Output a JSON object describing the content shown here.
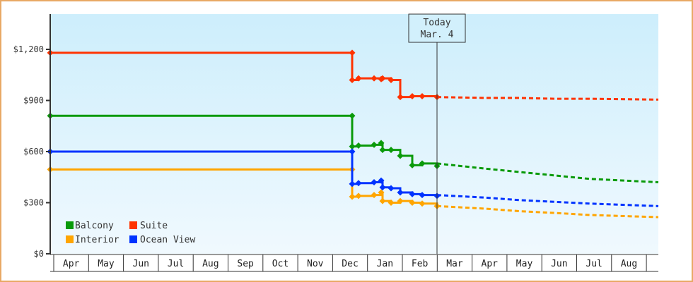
{
  "chart_data": {
    "type": "line",
    "title": "",
    "xlabel": "",
    "ylabel": "",
    "ylim": [
      0,
      1400
    ],
    "y_ticks": [
      {
        "value": 0,
        "label": "$0"
      },
      {
        "value": 300,
        "label": "$300"
      },
      {
        "value": 600,
        "label": "$600"
      },
      {
        "value": 900,
        "label": "$900"
      },
      {
        "value": 1200,
        "label": "$1,200"
      }
    ],
    "x_ticks": [
      "Apr",
      "May",
      "Jun",
      "Jul",
      "Aug",
      "Sep",
      "Oct",
      "Nov",
      "Dec",
      "Jan",
      "Feb",
      "Mar",
      "Apr",
      "May",
      "Jun",
      "Jul",
      "Aug"
    ],
    "grid": false,
    "legend_position": "lower-left inside",
    "today_marker": {
      "line1": "Today",
      "line2": "Mar. 4"
    },
    "series": [
      {
        "name": "Balcony",
        "color": "#0a9a0a",
        "history": [
          {
            "date": "Apr",
            "value": 810
          },
          {
            "date": "Dec",
            "value": 810
          },
          {
            "date": "Dec",
            "value": 630
          },
          {
            "date": "Dec",
            "value": 635
          },
          {
            "date": "Jan",
            "value": 640
          },
          {
            "date": "Jan",
            "value": 650
          },
          {
            "date": "Jan",
            "value": 610
          },
          {
            "date": "Jan",
            "value": 610
          },
          {
            "date": "Feb",
            "value": 575
          },
          {
            "date": "Feb",
            "value": 520
          },
          {
            "date": "Feb",
            "value": 530
          },
          {
            "date": "Mar",
            "value": 515
          }
        ],
        "forecast": [
          {
            "date": "Mar",
            "value": 530
          },
          {
            "date": "Apr",
            "value": 500
          },
          {
            "date": "May",
            "value": 480
          },
          {
            "date": "Jun",
            "value": 460
          },
          {
            "date": "Jul",
            "value": 440
          },
          {
            "date": "Aug",
            "value": 420
          }
        ]
      },
      {
        "name": "Suite",
        "color": "#ff3300",
        "history": [
          {
            "date": "Apr",
            "value": 1180
          },
          {
            "date": "Dec",
            "value": 1180
          },
          {
            "date": "Dec",
            "value": 1020
          },
          {
            "date": "Dec",
            "value": 1030
          },
          {
            "date": "Jan",
            "value": 1030
          },
          {
            "date": "Jan",
            "value": 1025
          },
          {
            "date": "Jan",
            "value": 1030
          },
          {
            "date": "Feb",
            "value": 1020
          },
          {
            "date": "Feb",
            "value": 920
          },
          {
            "date": "Feb",
            "value": 925
          },
          {
            "date": "Feb",
            "value": 925
          },
          {
            "date": "Mar",
            "value": 920
          }
        ],
        "forecast": [
          {
            "date": "Mar",
            "value": 920
          },
          {
            "date": "Apr",
            "value": 915
          },
          {
            "date": "May",
            "value": 915
          },
          {
            "date": "Jun",
            "value": 910
          },
          {
            "date": "Jul",
            "value": 910
          },
          {
            "date": "Aug",
            "value": 905
          }
        ]
      },
      {
        "name": "Interior",
        "color": "#ffa500",
        "history": [
          {
            "date": "Apr",
            "value": 495
          },
          {
            "date": "Dec",
            "value": 495
          },
          {
            "date": "Dec",
            "value": 335
          },
          {
            "date": "Dec",
            "value": 340
          },
          {
            "date": "Jan",
            "value": 345
          },
          {
            "date": "Jan",
            "value": 360
          },
          {
            "date": "Jan",
            "value": 310
          },
          {
            "date": "Jan",
            "value": 300
          },
          {
            "date": "Feb",
            "value": 310
          },
          {
            "date": "Feb",
            "value": 300
          },
          {
            "date": "Feb",
            "value": 295
          },
          {
            "date": "Mar",
            "value": 280
          }
        ],
        "forecast": [
          {
            "date": "Mar",
            "value": 280
          },
          {
            "date": "Apr",
            "value": 265
          },
          {
            "date": "May",
            "value": 250
          },
          {
            "date": "Jun",
            "value": 240
          },
          {
            "date": "Jul",
            "value": 228
          },
          {
            "date": "Aug",
            "value": 215
          }
        ]
      },
      {
        "name": "Ocean View",
        "color": "#0033ff",
        "history": [
          {
            "date": "Apr",
            "value": 600
          },
          {
            "date": "Dec",
            "value": 600
          },
          {
            "date": "Dec",
            "value": 410
          },
          {
            "date": "Dec",
            "value": 415
          },
          {
            "date": "Jan",
            "value": 420
          },
          {
            "date": "Jan",
            "value": 430
          },
          {
            "date": "Jan",
            "value": 390
          },
          {
            "date": "Jan",
            "value": 385
          },
          {
            "date": "Feb",
            "value": 360
          },
          {
            "date": "Feb",
            "value": 350
          },
          {
            "date": "Feb",
            "value": 345
          },
          {
            "date": "Mar",
            "value": 340
          }
        ],
        "forecast": [
          {
            "date": "Mar",
            "value": 345
          },
          {
            "date": "Apr",
            "value": 330
          },
          {
            "date": "May",
            "value": 315
          },
          {
            "date": "Jun",
            "value": 305
          },
          {
            "date": "Jul",
            "value": 295
          },
          {
            "date": "Aug",
            "value": 280
          }
        ]
      }
    ]
  },
  "legend": {
    "items": [
      {
        "label": "Balcony",
        "color": "#0a9a0a"
      },
      {
        "label": "Suite",
        "color": "#ff3300"
      },
      {
        "label": "Interior",
        "color": "#ffa500"
      },
      {
        "label": "Ocean View",
        "color": "#0033ff"
      }
    ]
  },
  "today": {
    "line1": "Today",
    "line2": "Mar. 4"
  },
  "colors": {
    "frame_border": "#e8a865",
    "plot_bg_top": "#cdeefc",
    "plot_bg_bottom": "#f0f9fe",
    "axis": "#333333"
  }
}
